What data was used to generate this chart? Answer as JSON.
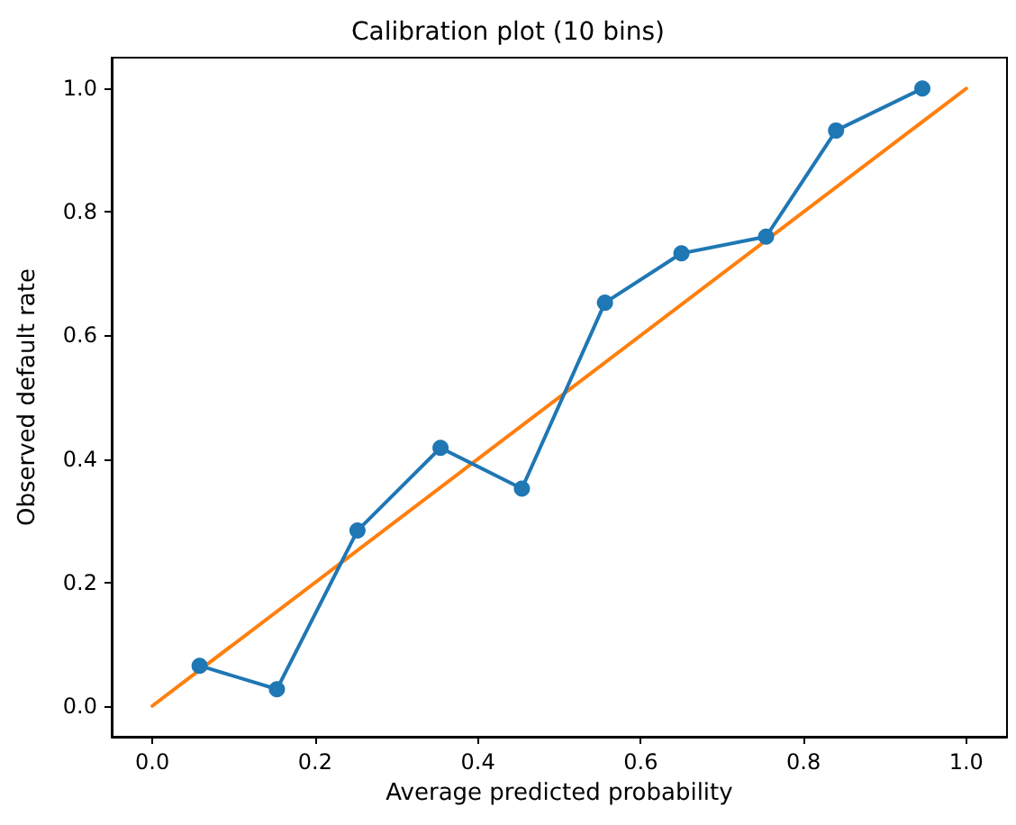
{
  "chart_data": {
    "type": "line",
    "title": "Calibration plot (10 bins)",
    "xlabel": "Average predicted probability",
    "ylabel": "Observed default rate",
    "xlim": [
      -0.05,
      1.05
    ],
    "ylim": [
      -0.05,
      1.05
    ],
    "xticks": [
      {
        "value": 0,
        "label": "0.0"
      },
      {
        "value": 0.2,
        "label": "0.2"
      },
      {
        "value": 0.4,
        "label": "0.4"
      },
      {
        "value": 0.6,
        "label": "0.6"
      },
      {
        "value": 0.8,
        "label": "0.8"
      },
      {
        "value": 1,
        "label": "1.0"
      }
    ],
    "yticks": [
      {
        "value": 0,
        "label": "0.0"
      },
      {
        "value": 0.2,
        "label": "0.2"
      },
      {
        "value": 0.4,
        "label": "0.4"
      },
      {
        "value": 0.6,
        "label": "0.6"
      },
      {
        "value": 0.8,
        "label": "0.8"
      },
      {
        "value": 1,
        "label": "1.0"
      }
    ],
    "grid": false,
    "line_style": "solid",
    "series": [
      {
        "color": "#1f77b4",
        "marker": "circle",
        "x": [
          0.058,
          0.153,
          0.252,
          0.354,
          0.454,
          0.556,
          0.65,
          0.754,
          0.84,
          0.946
        ],
        "values": [
          0.065,
          0.027,
          0.284,
          0.418,
          0.352,
          0.653,
          0.733,
          0.76,
          0.932,
          1.0
        ]
      },
      {
        "color": "#ff7f0e",
        "marker": "none",
        "x": [
          0,
          1
        ],
        "values": [
          0,
          1
        ]
      }
    ]
  }
}
